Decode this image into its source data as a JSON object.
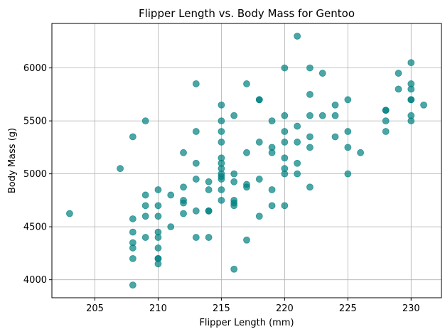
{
  "chart_data": {
    "type": "scatter",
    "title": "Flipper Length vs. Body Mass for Gentoo",
    "xlabel": "Flipper Length (mm)",
    "ylabel": "Body Mass (g)",
    "xlim": [
      201.6,
      232.4
    ],
    "ylim": [
      3830,
      6420
    ],
    "xticks": [
      205,
      210,
      215,
      220,
      225,
      230
    ],
    "yticks": [
      4000,
      4500,
      5000,
      5500,
      6000
    ],
    "grid": true,
    "marker_color": "#008080",
    "marker_alpha": 0.7,
    "points": [
      [
        203,
        4625
      ],
      [
        207,
        5050
      ],
      [
        208,
        5350
      ],
      [
        208,
        4575
      ],
      [
        208,
        4450
      ],
      [
        208,
        4350
      ],
      [
        208,
        4300
      ],
      [
        208,
        4200
      ],
      [
        208,
        3950
      ],
      [
        209,
        5500
      ],
      [
        209,
        4800
      ],
      [
        209,
        4700
      ],
      [
        209,
        4600
      ],
      [
        209,
        4400
      ],
      [
        210,
        4850
      ],
      [
        210,
        4700
      ],
      [
        210,
        4600
      ],
      [
        210,
        4450
      ],
      [
        210,
        4400
      ],
      [
        210,
        4300
      ],
      [
        210,
        4200
      ],
      [
        210,
        4200
      ],
      [
        210,
        4150
      ],
      [
        211,
        4800
      ],
      [
        211,
        4500
      ],
      [
        212,
        5200
      ],
      [
        212,
        4875
      ],
      [
        212,
        4750
      ],
      [
        212,
        4725
      ],
      [
        212,
        4625
      ],
      [
        213,
        5850
      ],
      [
        213,
        5400
      ],
      [
        213,
        5100
      ],
      [
        213,
        4950
      ],
      [
        213,
        4650
      ],
      [
        213,
        4400
      ],
      [
        214,
        4925
      ],
      [
        214,
        4850
      ],
      [
        214,
        4650
      ],
      [
        214,
        4650
      ],
      [
        214,
        4400
      ],
      [
        215,
        5650
      ],
      [
        215,
        5500
      ],
      [
        215,
        5400
      ],
      [
        215,
        5300
      ],
      [
        215,
        5150
      ],
      [
        215,
        5100
      ],
      [
        215,
        5050
      ],
      [
        215,
        5000
      ],
      [
        215,
        4975
      ],
      [
        215,
        4950
      ],
      [
        215,
        4850
      ],
      [
        215,
        4750
      ],
      [
        216,
        5550
      ],
      [
        216,
        5000
      ],
      [
        216,
        4925
      ],
      [
        216,
        4750
      ],
      [
        216,
        4725
      ],
      [
        216,
        4700
      ],
      [
        216,
        4100
      ],
      [
        217,
        5850
      ],
      [
        217,
        5200
      ],
      [
        217,
        4900
      ],
      [
        217,
        4875
      ],
      [
        217,
        4375
      ],
      [
        218,
        5700
      ],
      [
        218,
        5700
      ],
      [
        218,
        5300
      ],
      [
        218,
        4950
      ],
      [
        218,
        4600
      ],
      [
        219,
        5500
      ],
      [
        219,
        5250
      ],
      [
        219,
        5200
      ],
      [
        219,
        4850
      ],
      [
        219,
        4700
      ],
      [
        220,
        6000
      ],
      [
        220,
        5550
      ],
      [
        220,
        5400
      ],
      [
        220,
        5300
      ],
      [
        220,
        5150
      ],
      [
        220,
        5050
      ],
      [
        220,
        5000
      ],
      [
        220,
        4700
      ],
      [
        221,
        6300
      ],
      [
        221,
        5450
      ],
      [
        221,
        5300
      ],
      [
        221,
        5100
      ],
      [
        221,
        5000
      ],
      [
        222,
        6000
      ],
      [
        222,
        5750
      ],
      [
        222,
        5550
      ],
      [
        222,
        5350
      ],
      [
        222,
        5250
      ],
      [
        222,
        4875
      ],
      [
        223,
        5950
      ],
      [
        223,
        5550
      ],
      [
        224,
        5650
      ],
      [
        224,
        5550
      ],
      [
        224,
        5350
      ],
      [
        225,
        5700
      ],
      [
        225,
        5400
      ],
      [
        225,
        5250
      ],
      [
        225,
        5000
      ],
      [
        226,
        5200
      ],
      [
        228,
        5600
      ],
      [
        228,
        5600
      ],
      [
        228,
        5500
      ],
      [
        228,
        5400
      ],
      [
        229,
        5950
      ],
      [
        229,
        5800
      ],
      [
        230,
        6050
      ],
      [
        230,
        5850
      ],
      [
        230,
        5800
      ],
      [
        230,
        5700
      ],
      [
        230,
        5700
      ],
      [
        230,
        5550
      ],
      [
        230,
        5500
      ],
      [
        231,
        5650
      ]
    ]
  }
}
